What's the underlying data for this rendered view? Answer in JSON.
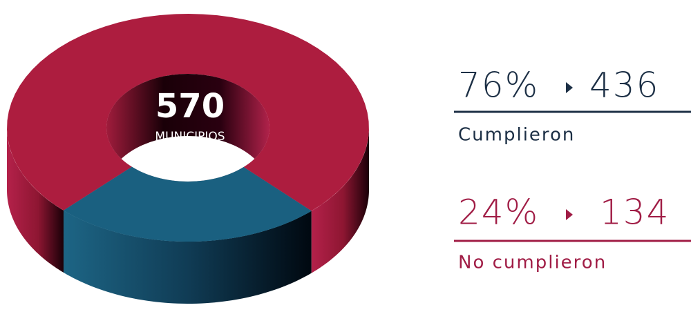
{
  "chart_data": {
    "type": "donut",
    "total": 570,
    "total_label": "MUNICIPIOS",
    "categories": [
      "Cumplieron",
      "No cumplieron"
    ],
    "values": [
      76,
      24
    ],
    "value_labels": [
      "76%",
      "24%"
    ],
    "counts": [
      436,
      134
    ],
    "colors": [
      "#ad1d3f",
      "#1a6080"
    ]
  }
}
